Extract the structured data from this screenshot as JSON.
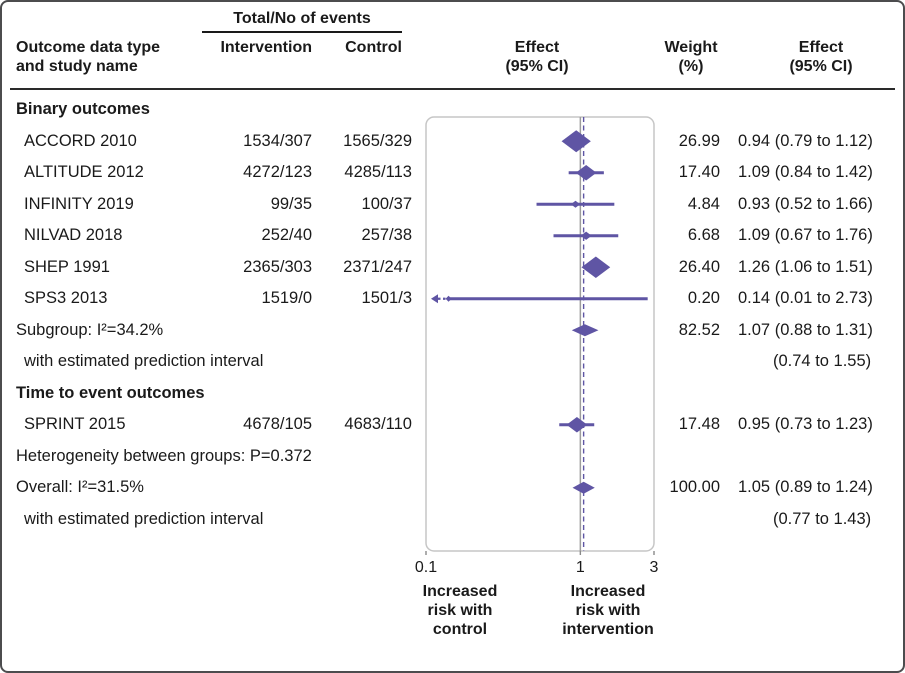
{
  "colors": {
    "accent": "#5f55a4",
    "text": "#1a1a1a",
    "plot_border": "#c6c6c6",
    "ref_line": "#9d9d9d",
    "page_border": "#4c4c4e"
  },
  "header": {
    "events_group": "Total/No of events",
    "study_lines": [
      "Outcome data type",
      "and study name"
    ],
    "intervention": "Intervention",
    "control": "Control",
    "effect_plot_lines": [
      "Effect",
      "(95% CI)"
    ],
    "weight_lines": [
      "Weight",
      "(%)"
    ],
    "effect_ci_lines": [
      "Effect",
      "(95% CI)"
    ]
  },
  "footer": {
    "left_lines": [
      "Increased",
      "risk with",
      "control"
    ],
    "right_lines": [
      "Increased",
      "risk with",
      "intervention"
    ]
  },
  "chart_data": {
    "type": "forest",
    "x_scale": "log",
    "axis": {
      "min": 0.1,
      "max": 3,
      "tick_values": [
        0.1,
        1,
        3
      ],
      "ticks": [
        "0.1",
        "1",
        "3"
      ],
      "ref_line": 1,
      "overall_line": 1.05
    },
    "rows": [
      {
        "type": "section",
        "label": "Binary outcomes"
      },
      {
        "type": "study",
        "label": "ACCORD 2010",
        "intervention": "1534/307",
        "control": "1565/329",
        "est": 0.94,
        "lo": 0.79,
        "hi": 1.12,
        "weight": 26.99,
        "weight_text": "26.99",
        "effect_text": "0.94 (0.79 to 1.12)"
      },
      {
        "type": "study",
        "label": "ALTITUDE 2012",
        "intervention": "4272/123",
        "control": "4285/113",
        "est": 1.09,
        "lo": 0.84,
        "hi": 1.42,
        "weight": 17.4,
        "weight_text": "17.40",
        "effect_text": "1.09 (0.84 to 1.42)"
      },
      {
        "type": "study",
        "label": "INFINITY 2019",
        "intervention": "99/35",
        "control": "100/37",
        "est": 0.93,
        "lo": 0.52,
        "hi": 1.66,
        "weight": 4.84,
        "weight_text": "4.84",
        "effect_text": "0.93 (0.52 to 1.66)"
      },
      {
        "type": "study",
        "label": "NILVAD 2018",
        "intervention": "252/40",
        "control": "257/38",
        "est": 1.09,
        "lo": 0.67,
        "hi": 1.76,
        "weight": 6.68,
        "weight_text": "6.68",
        "effect_text": "1.09 (0.67 to 1.76)"
      },
      {
        "type": "study",
        "label": "SHEP 1991",
        "intervention": "2365/303",
        "control": "2371/247",
        "est": 1.26,
        "lo": 1.06,
        "hi": 1.51,
        "weight": 26.4,
        "weight_text": "26.40",
        "effect_text": "1.26 (1.06 to 1.51)"
      },
      {
        "type": "study",
        "label": "SPS3 2013",
        "intervention": "1519/0",
        "control": "1501/3",
        "est": 0.14,
        "lo": 0.01,
        "hi": 2.73,
        "weight": 0.2,
        "weight_text": "0.20",
        "effect_text": "0.14 (0.01 to 2.73)"
      },
      {
        "type": "summary",
        "label": "Subgroup: I²=34.2%",
        "est": 1.07,
        "lo": 0.88,
        "hi": 1.31,
        "weight_text": "82.52",
        "effect_text": "1.07 (0.88 to 1.31)"
      },
      {
        "type": "note",
        "label": "with estimated prediction interval",
        "effect_text": "(0.74 to 1.55)"
      },
      {
        "type": "section",
        "label": "Time to event outcomes"
      },
      {
        "type": "study",
        "label": "SPRINT 2015",
        "intervention": "4678/105",
        "control": "4683/110",
        "est": 0.95,
        "lo": 0.73,
        "hi": 1.23,
        "weight": 17.48,
        "weight_text": "17.48",
        "effect_text": "0.95 (0.73 to 1.23)"
      },
      {
        "type": "text",
        "label": "Heterogeneity between groups: P=0.372"
      },
      {
        "type": "summary",
        "label": "Overall: I²=31.5%",
        "est": 1.05,
        "lo": 0.89,
        "hi": 1.24,
        "weight_text": "100.00",
        "effect_text": "1.05 (0.89 to 1.24)"
      },
      {
        "type": "note",
        "label": "with estimated prediction interval",
        "effect_text": "(0.77 to 1.43)"
      }
    ]
  }
}
